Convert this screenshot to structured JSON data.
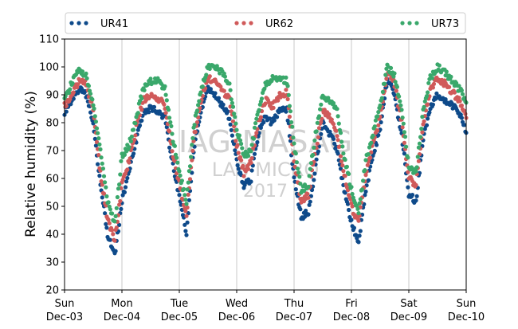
{
  "chart_data": {
    "type": "scatter",
    "title": "",
    "xlabel": "",
    "ylabel": "Relative humidity (%)",
    "ylim": [
      20,
      110
    ],
    "yticks": [
      20,
      30,
      40,
      50,
      60,
      70,
      80,
      90,
      100,
      110
    ],
    "x_range_days": [
      "Dec-03 00:00",
      "Dec-10 00:00"
    ],
    "xticks": [
      {
        "day": "Sun",
        "date": "Dec-03"
      },
      {
        "day": "Mon",
        "date": "Dec-04"
      },
      {
        "day": "Tue",
        "date": "Dec-05"
      },
      {
        "day": "Wed",
        "date": "Dec-06"
      },
      {
        "day": "Thu",
        "date": "Dec-07"
      },
      {
        "day": "Fri",
        "date": "Dec-08"
      },
      {
        "day": "Sat",
        "date": "Dec-09"
      },
      {
        "day": "Sun",
        "date": "Dec-10"
      }
    ],
    "grid": "vertical",
    "legend_placement": "top",
    "watermark": [
      "IAG-MASAG",
      "LAB MICRO",
      "2017"
    ],
    "series": [
      {
        "name": "UR41",
        "color": "#0e4a8a",
        "x": [
          "Dec-03 00:00",
          "Dec-03 03:00",
          "Dec-03 06:00",
          "Dec-03 09:00",
          "Dec-03 12:00",
          "Dec-03 15:00",
          "Dec-03 18:00",
          "Dec-03 21:00",
          "Dec-04 00:00",
          "Dec-04 03:00",
          "Dec-04 06:00",
          "Dec-04 09:00",
          "Dec-04 12:00",
          "Dec-04 15:00",
          "Dec-04 18:00",
          "Dec-04 21:00",
          "Dec-05 00:00",
          "Dec-05 03:00",
          "Dec-05 06:00",
          "Dec-05 09:00",
          "Dec-05 12:00",
          "Dec-05 15:00",
          "Dec-05 18:00",
          "Dec-05 21:00",
          "Dec-06 00:00",
          "Dec-06 03:00",
          "Dec-06 06:00",
          "Dec-06 09:00",
          "Dec-06 12:00",
          "Dec-06 15:00",
          "Dec-06 18:00",
          "Dec-06 21:00",
          "Dec-07 00:00",
          "Dec-07 03:00",
          "Dec-07 06:00",
          "Dec-07 09:00",
          "Dec-07 12:00",
          "Dec-07 15:00",
          "Dec-07 18:00",
          "Dec-07 21:00",
          "Dec-08 00:00",
          "Dec-08 03:00",
          "Dec-08 06:00",
          "Dec-08 09:00",
          "Dec-08 12:00",
          "Dec-08 15:00",
          "Dec-08 18:00",
          "Dec-08 21:00",
          "Dec-09 00:00",
          "Dec-09 03:00",
          "Dec-09 06:00",
          "Dec-09 09:00",
          "Dec-09 12:00",
          "Dec-09 15:00",
          "Dec-09 18:00",
          "Dec-09 21:00",
          "Dec-10 00:00"
        ],
        "values": [
          84,
          88,
          92,
          90,
          80,
          58,
          40,
          32,
          52,
          62,
          74,
          84,
          85,
          84,
          82,
          66,
          54,
          40,
          70,
          84,
          92,
          90,
          86,
          82,
          66,
          57,
          60,
          76,
          82,
          80,
          84,
          85,
          60,
          46,
          48,
          64,
          80,
          76,
          70,
          56,
          44,
          37,
          56,
          68,
          78,
          96,
          90,
          76,
          54,
          52,
          74,
          86,
          90,
          88,
          86,
          84,
          76
        ]
      },
      {
        "name": "UR62",
        "color": "#d05a5a",
        "x": [
          "Dec-03 00:00",
          "Dec-03 03:00",
          "Dec-03 06:00",
          "Dec-03 09:00",
          "Dec-03 12:00",
          "Dec-03 15:00",
          "Dec-03 18:00",
          "Dec-03 21:00",
          "Dec-04 00:00",
          "Dec-04 03:00",
          "Dec-04 06:00",
          "Dec-04 09:00",
          "Dec-04 12:00",
          "Dec-04 15:00",
          "Dec-04 18:00",
          "Dec-04 21:00",
          "Dec-05 00:00",
          "Dec-05 03:00",
          "Dec-05 06:00",
          "Dec-05 09:00",
          "Dec-05 12:00",
          "Dec-05 15:00",
          "Dec-05 18:00",
          "Dec-05 21:00",
          "Dec-06 00:00",
          "Dec-06 03:00",
          "Dec-06 06:00",
          "Dec-06 09:00",
          "Dec-06 12:00",
          "Dec-06 15:00",
          "Dec-06 18:00",
          "Dec-06 21:00",
          "Dec-07 00:00",
          "Dec-07 03:00",
          "Dec-07 06:00",
          "Dec-07 09:00",
          "Dec-07 12:00",
          "Dec-07 15:00",
          "Dec-07 18:00",
          "Dec-07 21:00",
          "Dec-08 00:00",
          "Dec-08 03:00",
          "Dec-08 06:00",
          "Dec-08 09:00",
          "Dec-08 12:00",
          "Dec-08 15:00",
          "Dec-08 18:00",
          "Dec-08 21:00",
          "Dec-09 00:00",
          "Dec-09 03:00",
          "Dec-09 06:00",
          "Dec-09 09:00",
          "Dec-09 12:00",
          "Dec-09 15:00",
          "Dec-09 18:00",
          "Dec-09 21:00",
          "Dec-10 00:00"
        ],
        "values": [
          86,
          90,
          95,
          94,
          84,
          62,
          45,
          38,
          58,
          66,
          78,
          88,
          90,
          89,
          86,
          70,
          58,
          46,
          74,
          88,
          96,
          95,
          92,
          88,
          72,
          62,
          66,
          80,
          88,
          86,
          90,
          91,
          66,
          52,
          54,
          70,
          84,
          82,
          76,
          62,
          50,
          44,
          62,
          72,
          82,
          98,
          94,
          80,
          60,
          58,
          80,
          92,
          96,
          94,
          91,
          88,
          82
        ]
      },
      {
        "name": "UR73",
        "color": "#3aa86b",
        "x": [
          "Dec-03 00:00",
          "Dec-03 03:00",
          "Dec-03 06:00",
          "Dec-03 09:00",
          "Dec-03 12:00",
          "Dec-03 15:00",
          "Dec-03 18:00",
          "Dec-03 21:00",
          "Dec-04 00:00",
          "Dec-04 03:00",
          "Dec-04 06:00",
          "Dec-04 09:00",
          "Dec-04 12:00",
          "Dec-04 15:00",
          "Dec-04 18:00",
          "Dec-04 21:00",
          "Dec-05 00:00",
          "Dec-05 03:00",
          "Dec-05 06:00",
          "Dec-05 09:00",
          "Dec-05 12:00",
          "Dec-05 15:00",
          "Dec-05 18:00",
          "Dec-05 21:00",
          "Dec-06 00:00",
          "Dec-06 03:00",
          "Dec-06 06:00",
          "Dec-06 09:00",
          "Dec-06 12:00",
          "Dec-06 15:00",
          "Dec-06 18:00",
          "Dec-06 21:00",
          "Dec-07 00:00",
          "Dec-07 03:00",
          "Dec-07 06:00",
          "Dec-07 09:00",
          "Dec-07 12:00",
          "Dec-07 15:00",
          "Dec-07 18:00",
          "Dec-07 21:00",
          "Dec-08 00:00",
          "Dec-08 03:00",
          "Dec-08 06:00",
          "Dec-08 09:00",
          "Dec-08 12:00",
          "Dec-08 15:00",
          "Dec-08 18:00",
          "Dec-08 21:00",
          "Dec-09 00:00",
          "Dec-09 03:00",
          "Dec-09 06:00",
          "Dec-09 09:00",
          "Dec-09 12:00",
          "Dec-09 15:00",
          "Dec-09 18:00",
          "Dec-09 21:00",
          "Dec-10 00:00"
        ],
        "values": [
          88,
          94,
          99,
          97,
          86,
          70,
          52,
          44,
          68,
          72,
          82,
          92,
          95,
          95,
          92,
          76,
          62,
          52,
          78,
          92,
          100,
          100,
          98,
          93,
          78,
          68,
          70,
          84,
          94,
          96,
          96,
          95,
          72,
          56,
          58,
          76,
          90,
          88,
          84,
          68,
          56,
          48,
          66,
          76,
          86,
          100,
          97,
          84,
          64,
          62,
          84,
          96,
          100,
          98,
          95,
          92,
          88
        ]
      }
    ]
  }
}
